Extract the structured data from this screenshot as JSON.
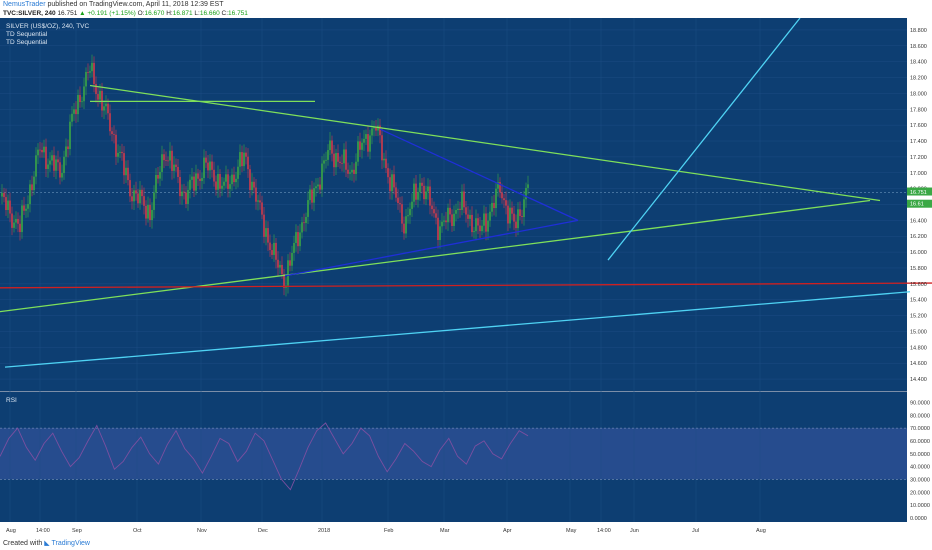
{
  "header": {
    "author": "NemusTrader",
    "published_text": "published on TradingView.com, April 11, 2018 12:39 EST"
  },
  "symbol_bar": {
    "symbol": "TVC:SILVER, 240",
    "last": "16.751",
    "change": "▲ +0.191 (+1.15%)",
    "open_label": "O:",
    "open": "16.670",
    "high_label": "H:",
    "high": "16.871",
    "low_label": "L:",
    "low": "16.660",
    "close_label": "C:",
    "close": "16.751"
  },
  "chart_legend": {
    "title": "SILVER (US$/OZ), 240, TVC",
    "indicator_1": "TD Sequential",
    "indicator_2": "TD Sequential"
  },
  "rsi_label": "RSI",
  "footer": {
    "created_with": "Created with",
    "brand": "TradingView"
  },
  "colors": {
    "background": "#0d3e72",
    "rsi_band": "#264c8e",
    "green_line": "#7fe05a",
    "blue_line": "#1f2fd8",
    "red_line": "#d02020",
    "cyan_line": "#4fd3f4",
    "candle_up": "#3aa845",
    "candle_down": "#d23a4a",
    "rsi_line": "#7a4fa0"
  },
  "chart_data": [
    {
      "type": "line",
      "name": "price",
      "y_ticks": [
        "18.800",
        "18.600",
        "18.400",
        "18.200",
        "18.000",
        "17.800",
        "17.600",
        "17.400",
        "17.200",
        "17.000",
        "16.800",
        "16.600",
        "16.400",
        "16.200",
        "16.000",
        "15.800",
        "15.600",
        "15.400",
        "15.200",
        "15.000",
        "14.800",
        "14.600",
        "14.400"
      ],
      "ylim": [
        14.3,
        18.9
      ],
      "x_ticks": [
        "Aug",
        "14:00",
        "Sep",
        "Oct",
        "Nov",
        "Dec",
        "2018",
        "Feb",
        "Mar",
        "Apr",
        "May",
        "14:00",
        "Jun",
        "Jul",
        "Aug"
      ],
      "last_price_label": "16.751",
      "secondary_price_label": "16.61",
      "pivots": [
        {
          "x": 0,
          "y": 16.7
        },
        {
          "x": 20,
          "y": 16.3
        },
        {
          "x": 40,
          "y": 17.3
        },
        {
          "x": 60,
          "y": 17.0
        },
        {
          "x": 75,
          "y": 17.8
        },
        {
          "x": 90,
          "y": 18.3
        },
        {
          "x": 110,
          "y": 17.6
        },
        {
          "x": 130,
          "y": 16.8
        },
        {
          "x": 150,
          "y": 16.5
        },
        {
          "x": 165,
          "y": 17.3
        },
        {
          "x": 185,
          "y": 16.7
        },
        {
          "x": 205,
          "y": 17.1
        },
        {
          "x": 225,
          "y": 16.8
        },
        {
          "x": 245,
          "y": 17.2
        },
        {
          "x": 260,
          "y": 16.5
        },
        {
          "x": 275,
          "y": 15.9
        },
        {
          "x": 285,
          "y": 15.65
        },
        {
          "x": 300,
          "y": 16.3
        },
        {
          "x": 315,
          "y": 16.8
        },
        {
          "x": 330,
          "y": 17.3
        },
        {
          "x": 350,
          "y": 17.0
        },
        {
          "x": 360,
          "y": 17.3
        },
        {
          "x": 375,
          "y": 17.6
        },
        {
          "x": 390,
          "y": 16.9
        },
        {
          "x": 405,
          "y": 16.35
        },
        {
          "x": 420,
          "y": 16.9
        },
        {
          "x": 440,
          "y": 16.3
        },
        {
          "x": 460,
          "y": 16.6
        },
        {
          "x": 480,
          "y": 16.25
        },
        {
          "x": 500,
          "y": 16.8
        },
        {
          "x": 515,
          "y": 16.3
        },
        {
          "x": 528,
          "y": 16.85
        }
      ],
      "annotations": [
        {
          "kind": "green",
          "x1": 90,
          "y1": 18.1,
          "x2": 880,
          "y2": 16.65
        },
        {
          "kind": "green",
          "x1": 0,
          "y1": 15.25,
          "x2": 870,
          "y2": 16.65
        },
        {
          "kind": "green",
          "x1": 90,
          "y1": 17.9,
          "x2": 315,
          "y2": 17.9
        },
        {
          "kind": "blue",
          "x1": 380,
          "y1": 17.55,
          "x2": 578,
          "y2": 16.4
        },
        {
          "kind": "blue",
          "x1": 285,
          "y1": 15.7,
          "x2": 578,
          "y2": 16.4
        },
        {
          "kind": "red",
          "x1": 0,
          "y1": 15.55,
          "x2": 932,
          "y2": 15.61
        },
        {
          "kind": "cyan",
          "x1": 5,
          "y1": 14.55,
          "x2": 910,
          "y2": 15.5
        },
        {
          "kind": "cyan",
          "x1": 608,
          "y1": 15.9,
          "x2": 800,
          "y2": 18.95
        }
      ]
    },
    {
      "type": "line",
      "name": "RSI",
      "y_ticks": [
        "90.0000",
        "80.0000",
        "70.0000",
        "60.0000",
        "50.0000",
        "40.0000",
        "30.0000",
        "20.0000",
        "10.0000",
        "0.0000"
      ],
      "ylim": [
        0,
        95
      ],
      "bands": [
        30,
        70
      ],
      "values": [
        48,
        62,
        70,
        55,
        45,
        58,
        66,
        52,
        40,
        47,
        60,
        72,
        56,
        38,
        44,
        55,
        63,
        50,
        42,
        57,
        68,
        54,
        46,
        35,
        48,
        62,
        58,
        44,
        52,
        66,
        60,
        45,
        30,
        22,
        38,
        55,
        68,
        74,
        62,
        50,
        58,
        70,
        64,
        48,
        36,
        46,
        58,
        52,
        44,
        40,
        53,
        62,
        48,
        42,
        56,
        60,
        50,
        46,
        58,
        68,
        64
      ]
    }
  ]
}
